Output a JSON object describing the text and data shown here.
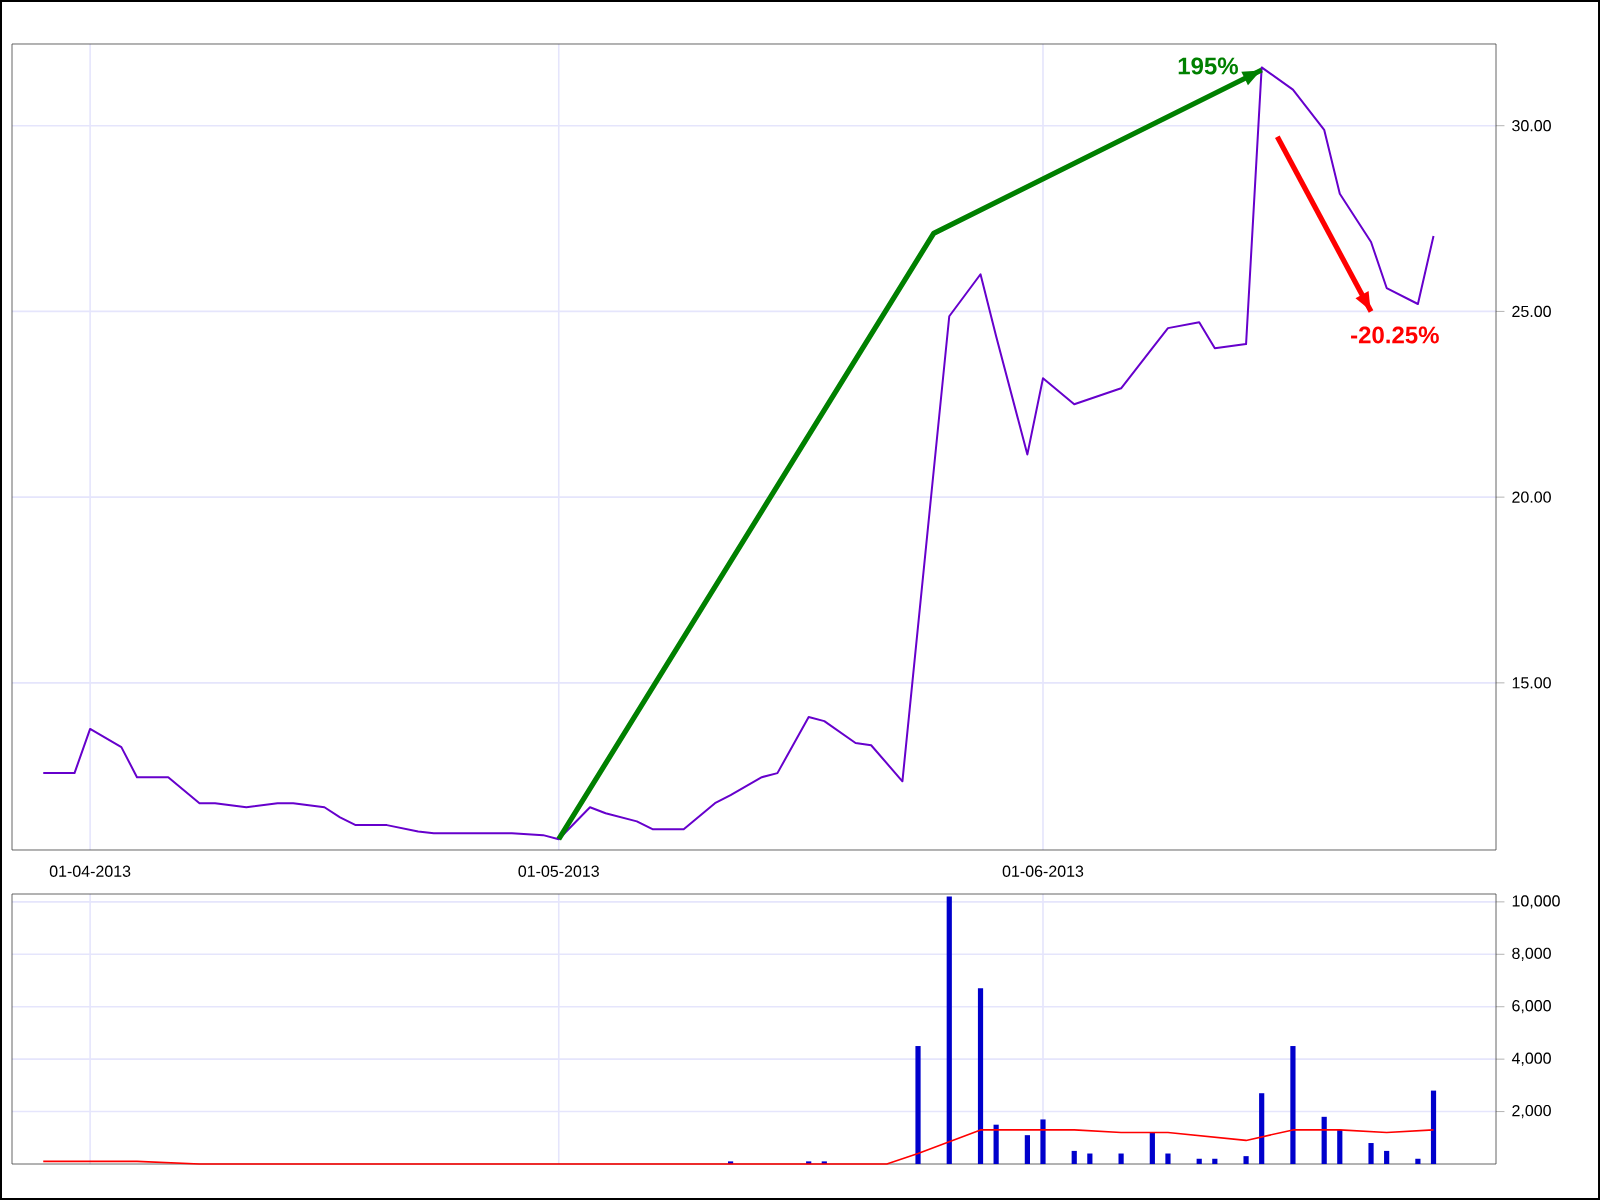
{
  "chart_data": [
    {
      "type": "line",
      "xlim": [
        "2013-03-27",
        "2013-06-30"
      ],
      "ylim": [
        10.5,
        32.2
      ],
      "xticks": [
        {
          "value": "2013-04-01",
          "label": "01-04-2013"
        },
        {
          "value": "2013-05-01",
          "label": "01-05-2013"
        },
        {
          "value": "2013-06-01",
          "label": "01-06-2013"
        }
      ],
      "yticks": [
        {
          "value": 15,
          "label": "15.00"
        },
        {
          "value": 20,
          "label": "20.00"
        },
        {
          "value": 25,
          "label": "25.00"
        },
        {
          "value": 30,
          "label": "30.00"
        }
      ],
      "grid": true,
      "series": [
        {
          "color": "#6600cc",
          "x": [
            "2013-03-29",
            "2013-03-31",
            "2013-04-01",
            "2013-04-03",
            "2013-04-04",
            "2013-04-06",
            "2013-04-08",
            "2013-04-09",
            "2013-04-11",
            "2013-04-13",
            "2013-04-14",
            "2013-04-16",
            "2013-04-17",
            "2013-04-18",
            "2013-04-20",
            "2013-04-22",
            "2013-04-23",
            "2013-04-25",
            "2013-04-26",
            "2013-04-28",
            "2013-04-30",
            "2013-05-01",
            "2013-05-03",
            "2013-05-04",
            "2013-05-06",
            "2013-05-07",
            "2013-05-09",
            "2013-05-11",
            "2013-05-12",
            "2013-05-14",
            "2013-05-15",
            "2013-05-17",
            "2013-05-18",
            "2013-05-20",
            "2013-05-21",
            "2013-05-23",
            "2013-05-26",
            "2013-05-28",
            "2013-05-29",
            "2013-05-31",
            "2013-06-01",
            "2013-06-03",
            "2013-06-06",
            "2013-06-08",
            "2013-06-09",
            "2013-06-11",
            "2013-06-12",
            "2013-06-14",
            "2013-06-15",
            "2013-06-17",
            "2013-06-19",
            "2013-06-20",
            "2013-06-22",
            "2013-06-23",
            "2013-06-25",
            "2013-06-26"
          ],
          "values": [
            12.57,
            12.57,
            13.76,
            13.27,
            12.46,
            12.46,
            11.76,
            11.76,
            11.65,
            11.76,
            11.76,
            11.65,
            11.38,
            11.17,
            11.17,
            11.0,
            10.95,
            10.95,
            10.95,
            10.95,
            10.9,
            10.79,
            11.65,
            11.49,
            11.27,
            11.06,
            11.06,
            11.76,
            11.98,
            12.46,
            12.57,
            14.08,
            13.97,
            13.38,
            13.32,
            12.35,
            24.87,
            26.0,
            24.33,
            21.15,
            23.2,
            22.5,
            22.93,
            24.01,
            24.55,
            24.71,
            24.01,
            24.12,
            31.57,
            30.97,
            29.89,
            28.17,
            26.87,
            25.63,
            25.2,
            27.03
          ]
        },
        {
          "type": "line",
          "color": "#008000",
          "x": [
            "2013-05-01",
            "2013-05-25",
            "2013-06-15"
          ],
          "values": [
            10.79,
            27.1,
            31.5
          ]
        },
        {
          "type": "line",
          "color": "#ff0000",
          "x": [
            "2013-06-16",
            "2013-06-22"
          ],
          "values": [
            29.7,
            25.0
          ]
        }
      ],
      "annotations": [
        "195%",
        "-20.25%"
      ]
    },
    {
      "type": "bar",
      "xlim": [
        "2013-03-27",
        "2013-06-30"
      ],
      "ylim": [
        0,
        10300
      ],
      "tick_labels": "y",
      "grid": true,
      "xticks": [
        {
          "value": "2013-04-01",
          "label": null
        },
        {
          "value": "2013-05-01",
          "label": null
        },
        {
          "value": "2013-06-01",
          "label": null
        }
      ],
      "yticks": [
        {
          "value": 2000,
          "label": "2,000"
        },
        {
          "value": 4000,
          "label": "4,000"
        },
        {
          "value": 6000,
          "label": "6,000"
        },
        {
          "value": 8000,
          "label": "8,000"
        },
        {
          "value": 10000,
          "label": "10,000"
        }
      ],
      "series": [
        {
          "color": "#0000cc",
          "x": [
            "2013-05-12",
            "2013-05-17",
            "2013-05-18",
            "2013-05-24",
            "2013-05-26",
            "2013-05-28",
            "2013-05-29",
            "2013-05-31",
            "2013-06-01",
            "2013-06-03",
            "2013-06-04",
            "2013-06-06",
            "2013-06-08",
            "2013-06-09",
            "2013-06-11",
            "2013-06-12",
            "2013-06-14",
            "2013-06-15",
            "2013-06-17",
            "2013-06-19",
            "2013-06-20",
            "2013-06-22",
            "2013-06-23",
            "2013-06-25",
            "2013-06-26"
          ],
          "values": [
            100,
            100,
            100,
            4500,
            10200,
            6700,
            1500,
            1100,
            1700,
            500,
            400,
            400,
            1200,
            400,
            200,
            200,
            300,
            2700,
            4500,
            1800,
            1300,
            800,
            500,
            200,
            2800
          ]
        },
        {
          "type": "line",
          "color": "#ff0000",
          "x": [
            "2013-03-29",
            "2013-04-04",
            "2013-04-08",
            "2013-05-22",
            "2013-05-24",
            "2013-05-28",
            "2013-06-03",
            "2013-06-06",
            "2013-06-09",
            "2013-06-14",
            "2013-06-17",
            "2013-06-20",
            "2013-06-23",
            "2013-06-26"
          ],
          "values": [
            100,
            100,
            0,
            0,
            400,
            1300,
            1300,
            1200,
            1200,
            900,
            1300,
            1300,
            1200,
            1300
          ]
        }
      ]
    }
  ]
}
